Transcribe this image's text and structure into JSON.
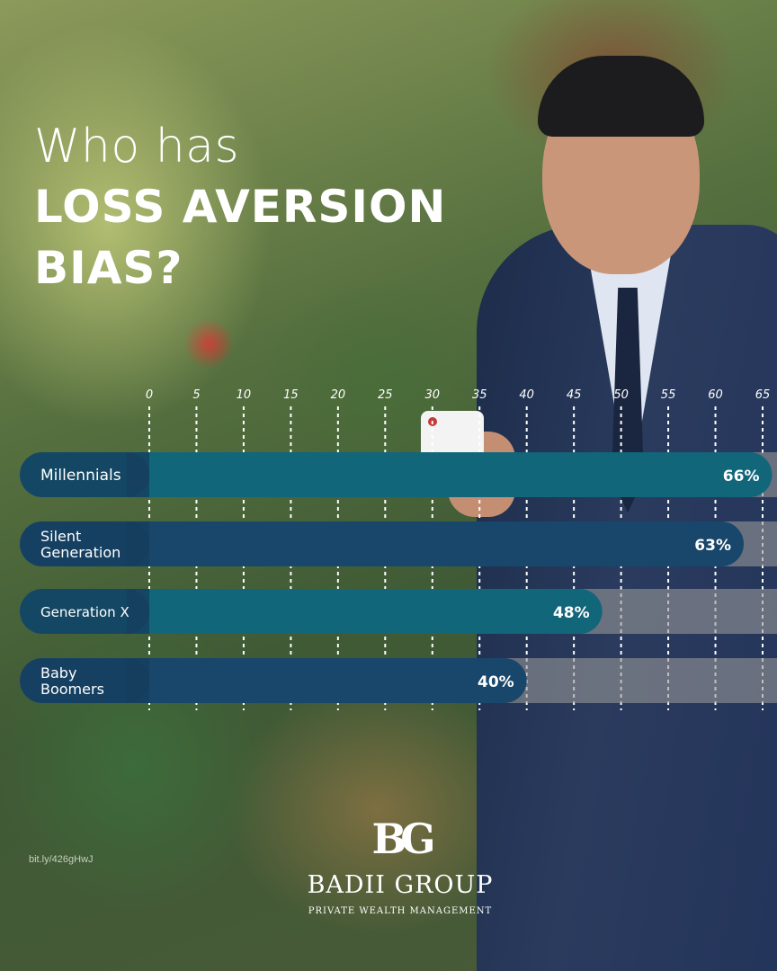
{
  "title": {
    "line1": "Who has",
    "line2": "LOSS AVERSION",
    "line3": "BIAS?"
  },
  "chart_data": {
    "type": "bar",
    "orientation": "horizontal",
    "x_ticks": [
      "0",
      "5",
      "10",
      "15",
      "20",
      "25",
      "30",
      "35",
      "40",
      "45",
      "50",
      "55",
      "60",
      "65"
    ],
    "xlim": [
      0,
      65
    ],
    "grid": true,
    "bars": [
      {
        "label_lines": [
          "Millennials"
        ],
        "value": 66,
        "value_label": "66%",
        "color": "#11667a"
      },
      {
        "label_lines": [
          "Silent",
          "Generation"
        ],
        "value": 63,
        "value_label": "63%",
        "color": "#18476b"
      },
      {
        "label_lines": [
          "Generation X"
        ],
        "value": 48,
        "value_label": "48%",
        "color": "#11667a"
      },
      {
        "label_lines": [
          "Baby",
          "Boomers"
        ],
        "value": 40,
        "value_label": "40%",
        "color": "#18476b"
      }
    ],
    "colors": {
      "label_cap": "#163e5e",
      "track": "rgba(150,150,150,0.6)"
    }
  },
  "footer": {
    "link": "bit.ly/426gHwJ"
  },
  "logo": {
    "mark": "BG",
    "name": "BADII GROUP",
    "tagline": "PRIVATE WEALTH MANAGEMENT"
  }
}
